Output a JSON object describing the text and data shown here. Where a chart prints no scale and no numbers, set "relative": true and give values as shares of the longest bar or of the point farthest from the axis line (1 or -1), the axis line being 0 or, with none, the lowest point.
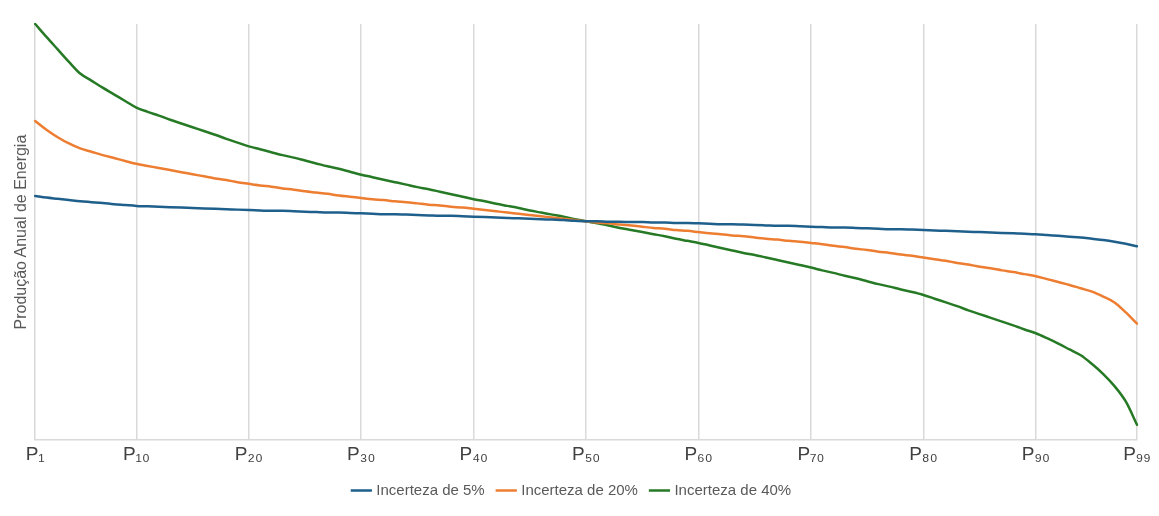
{
  "chart_data": {
    "type": "line",
    "relative": true,
    "ylabel": "Produção Anual de Energia",
    "categories": [
      "P₁",
      null,
      null,
      null,
      null,
      null,
      null,
      null,
      null,
      "P₁₀",
      null,
      null,
      null,
      null,
      null,
      null,
      null,
      null,
      null,
      "P₂₀",
      null,
      null,
      null,
      null,
      null,
      null,
      null,
      null,
      null,
      "P₃₀",
      null,
      null,
      null,
      null,
      null,
      null,
      null,
      null,
      null,
      "P₄₀",
      null,
      null,
      null,
      null,
      null,
      null,
      null,
      null,
      null,
      "P₅₀",
      null,
      null,
      null,
      null,
      null,
      null,
      null,
      null,
      null,
      "P₆₀",
      null,
      null,
      null,
      null,
      null,
      null,
      null,
      null,
      null,
      "P₇₀",
      null,
      null,
      null,
      null,
      null,
      null,
      null,
      null,
      null,
      "P₈₀",
      null,
      null,
      null,
      null,
      null,
      null,
      null,
      null,
      null,
      "P₉₀",
      null,
      null,
      null,
      null,
      null,
      null,
      null,
      null,
      "P₉₉"
    ],
    "grid": "x",
    "legend": "bottom",
    "marker": "none",
    "line_style": "solid",
    "series": [
      {
        "name": "Incerteza de 5%",
        "color": "#1f5f8b",
        "values": [
          0.587,
          0.583,
          0.58,
          0.577,
          0.574,
          0.572,
          0.57,
          0.567,
          0.565,
          0.563,
          0.562,
          0.561,
          0.56,
          0.559,
          0.558,
          0.557,
          0.556,
          0.555,
          0.554,
          0.553,
          0.552,
          0.551,
          0.551,
          0.55,
          0.549,
          0.548,
          0.547,
          0.547,
          0.546,
          0.545,
          0.544,
          0.543,
          0.543,
          0.542,
          0.541,
          0.54,
          0.539,
          0.539,
          0.538,
          0.537,
          0.536,
          0.535,
          0.534,
          0.533,
          0.532,
          0.531,
          0.53,
          0.529,
          0.527,
          0.526,
          0.526,
          0.525,
          0.525,
          0.524,
          0.524,
          0.523,
          0.523,
          0.522,
          0.522,
          0.521,
          0.52,
          0.519,
          0.519,
          0.518,
          0.517,
          0.516,
          0.515,
          0.515,
          0.514,
          0.513,
          0.512,
          0.511,
          0.511,
          0.51,
          0.509,
          0.508,
          0.507,
          0.507,
          0.506,
          0.505,
          0.504,
          0.503,
          0.502,
          0.501,
          0.5,
          0.499,
          0.498,
          0.497,
          0.496,
          0.495,
          0.493,
          0.491,
          0.489,
          0.487,
          0.484,
          0.481,
          0.477,
          0.472,
          0.466
        ]
      },
      {
        "name": "Incerteza de 20%",
        "color": "#ed7d31",
        "values": [
          0.767,
          0.746,
          0.728,
          0.713,
          0.701,
          0.693,
          0.685,
          0.678,
          0.671,
          0.664,
          0.659,
          0.654,
          0.649,
          0.644,
          0.639,
          0.634,
          0.629,
          0.625,
          0.62,
          0.616,
          0.612,
          0.609,
          0.605,
          0.602,
          0.598,
          0.595,
          0.592,
          0.588,
          0.585,
          0.582,
          0.579,
          0.577,
          0.574,
          0.572,
          0.569,
          0.566,
          0.564,
          0.561,
          0.559,
          0.556,
          0.553,
          0.55,
          0.547,
          0.544,
          0.541,
          0.538,
          0.535,
          0.532,
          0.529,
          0.526,
          0.523,
          0.521,
          0.518,
          0.516,
          0.513,
          0.51,
          0.508,
          0.505,
          0.503,
          0.5,
          0.497,
          0.495,
          0.492,
          0.49,
          0.487,
          0.484,
          0.482,
          0.479,
          0.477,
          0.474,
          0.471,
          0.467,
          0.464,
          0.46,
          0.457,
          0.453,
          0.45,
          0.446,
          0.443,
          0.439,
          0.435,
          0.431,
          0.426,
          0.422,
          0.417,
          0.413,
          0.408,
          0.404,
          0.399,
          0.394,
          0.387,
          0.38,
          0.373,
          0.365,
          0.357,
          0.345,
          0.331,
          0.307,
          0.28
        ]
      },
      {
        "name": "Incerteza de 40%",
        "color": "#267a25",
        "values": [
          1,
          0.969,
          0.939,
          0.909,
          0.881,
          0.864,
          0.847,
          0.831,
          0.815,
          0.799,
          0.789,
          0.78,
          0.77,
          0.761,
          0.752,
          0.743,
          0.734,
          0.724,
          0.715,
          0.706,
          0.699,
          0.692,
          0.685,
          0.679,
          0.672,
          0.665,
          0.658,
          0.652,
          0.645,
          0.638,
          0.632,
          0.626,
          0.62,
          0.614,
          0.608,
          0.603,
          0.597,
          0.591,
          0.585,
          0.579,
          0.574,
          0.568,
          0.563,
          0.558,
          0.552,
          0.547,
          0.542,
          0.537,
          0.531,
          0.526,
          0.521,
          0.516,
          0.51,
          0.505,
          0.5,
          0.495,
          0.49,
          0.484,
          0.479,
          0.474,
          0.468,
          0.462,
          0.456,
          0.45,
          0.445,
          0.439,
          0.433,
          0.427,
          0.421,
          0.415,
          0.408,
          0.402,
          0.395,
          0.389,
          0.382,
          0.375,
          0.369,
          0.362,
          0.356,
          0.349,
          0.34,
          0.331,
          0.322,
          0.312,
          0.303,
          0.294,
          0.285,
          0.276,
          0.266,
          0.257,
          0.245,
          0.232,
          0.218,
          0.204,
          0.183,
          0.159,
          0.13,
          0.093,
          0.037
        ]
      }
    ]
  }
}
